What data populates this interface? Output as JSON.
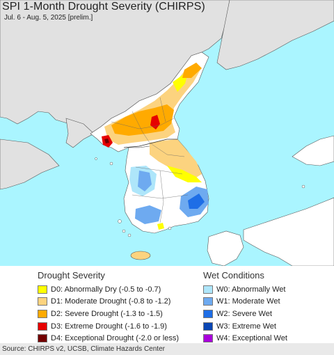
{
  "title": "SPI 1-Month Drought Severity (CHIRPS)",
  "subtitle": "Jul. 6 - Aug. 5, 2025 [prelim.]",
  "drought_legend": {
    "title": "Drought Severity",
    "items": [
      {
        "label": "D0: Abnormally Dry (-0.5 to -0.7)",
        "color": "#ffff00"
      },
      {
        "label": "D1: Moderate Drought (-0.8 to -1.2)",
        "color": "#fcd37f"
      },
      {
        "label": "D2: Severe Drought (-1.3 to -1.5)",
        "color": "#ffaa00"
      },
      {
        "label": "D3: Extreme Drought (-1.6 to -1.9)",
        "color": "#e60000"
      },
      {
        "label": "D4: Exceptional Drought (-2.0 or less)",
        "color": "#730000"
      }
    ]
  },
  "wet_legend": {
    "title": "Wet Conditions",
    "items": [
      {
        "label": "W0: Abnormally Wet",
        "color": "#aee6fa"
      },
      {
        "label": "W1: Moderate Wet",
        "color": "#6eaaf0"
      },
      {
        "label": "W2: Severe Wet",
        "color": "#1e6ee6"
      },
      {
        "label": "W3: Extreme Wet",
        "color": "#0a46b4"
      },
      {
        "label": "W4: Exceptional Wet",
        "color": "#aa00dc"
      }
    ]
  },
  "map_colors": {
    "water": "#aaf5ff",
    "land_no_data": "#e1e1e1",
    "land": "#ffffff"
  },
  "source": "Source: CHIRPS v2, UCSB, Climate Hazards Center"
}
